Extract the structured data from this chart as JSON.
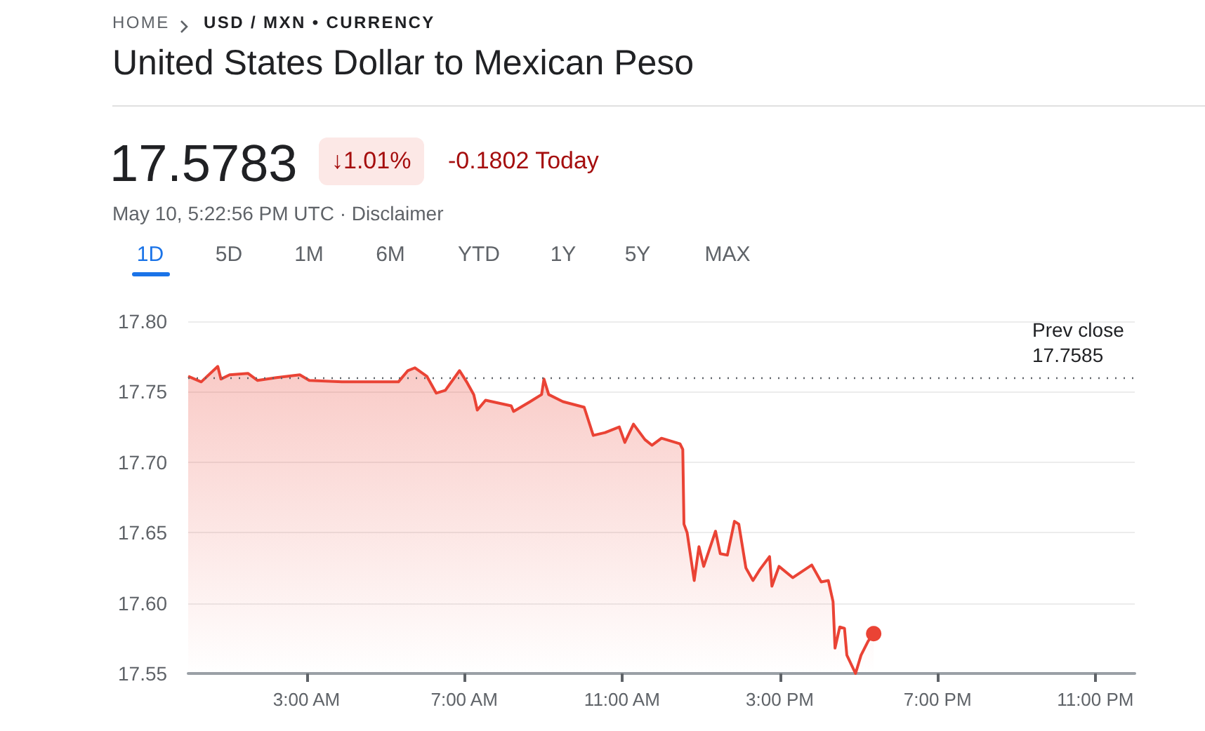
{
  "chart_data": {
    "type": "area",
    "title": "United States Dollar to Mexican Peso",
    "annotations": [
      "HOME",
      "USD / MXN • CURRENCY",
      "17.5783",
      "↓1.01%",
      "-0.1802 Today",
      "May 10, 5:22:56 PM UTC · Disclaimer",
      "1D",
      "5D",
      "1M",
      "6M",
      "YTD",
      "1Y",
      "5Y",
      "MAX"
    ],
    "series": [
      {
        "color": "#ea4335",
        "x": [
          0,
          0.33,
          0.75,
          0.83,
          1.05,
          1.52,
          1.76,
          2.24,
          2.83,
          3.07,
          3.9,
          5.33,
          5.57,
          5.75,
          6.05,
          6.29,
          6.52,
          6.88,
          7.06,
          7.24,
          7.33,
          7.54,
          8.19,
          8.25,
          8.67,
          8.96,
          9.02,
          9.14,
          9.5,
          10.04,
          10.27,
          10.57,
          10.93,
          11.07,
          11.29,
          11.58,
          11.76,
          12.0,
          12.47,
          12.54,
          12.57,
          12.65,
          12.83,
          12.95,
          13.07,
          13.37,
          13.49,
          13.67,
          13.85,
          13.96,
          14.14,
          14.32,
          14.5,
          14.74,
          14.8,
          14.98,
          15.33,
          15.81,
          16.05,
          16.23,
          16.35,
          16.4,
          16.52,
          16.64,
          16.7,
          16.92,
          17.06,
          17.24,
          17.38
        ],
        "values": [
          17.761,
          17.757,
          17.768,
          17.759,
          17.762,
          17.763,
          17.758,
          17.76,
          17.762,
          17.758,
          17.757,
          17.757,
          17.765,
          17.767,
          17.761,
          17.749,
          17.751,
          17.765,
          17.757,
          17.748,
          17.737,
          17.744,
          17.74,
          17.736,
          17.743,
          17.748,
          17.759,
          17.748,
          17.743,
          17.739,
          17.719,
          17.721,
          17.725,
          17.714,
          17.727,
          17.716,
          17.712,
          17.717,
          17.713,
          17.709,
          17.656,
          17.65,
          17.616,
          17.64,
          17.626,
          17.651,
          17.635,
          17.634,
          17.658,
          17.656,
          17.625,
          17.616,
          17.624,
          17.633,
          17.612,
          17.626,
          17.618,
          17.627,
          17.615,
          17.616,
          17.601,
          17.568,
          17.583,
          17.582,
          17.563,
          17.55,
          17.563,
          17.573,
          17.5783
        ]
      }
    ],
    "xlim": [
      0,
      24
    ],
    "xticks": [
      {
        "value": 3,
        "label": "3:00 AM"
      },
      {
        "value": 7,
        "label": "7:00 AM"
      },
      {
        "value": 11,
        "label": "11:00 AM"
      },
      {
        "value": 15,
        "label": "3:00 PM"
      },
      {
        "value": 19,
        "label": "7:00 PM"
      },
      {
        "value": 23,
        "label": "11:00 PM"
      }
    ],
    "ylim": [
      17.55,
      17.8
    ],
    "yticks": [
      {
        "value": 17.55,
        "label": "17.55"
      },
      {
        "value": 17.6,
        "label": "17.60"
      },
      {
        "value": 17.65,
        "label": "17.65"
      },
      {
        "value": 17.7,
        "label": "17.70"
      },
      {
        "value": 17.75,
        "label": "17.75"
      },
      {
        "value": 17.8,
        "label": "17.80"
      }
    ],
    "grid": "y",
    "ref_lines": [
      {
        "axis": "y",
        "value": 17.7585,
        "label": "Prev close\n17.7585",
        "line_style": "dotted",
        "color": "#5f6368"
      }
    ]
  }
}
